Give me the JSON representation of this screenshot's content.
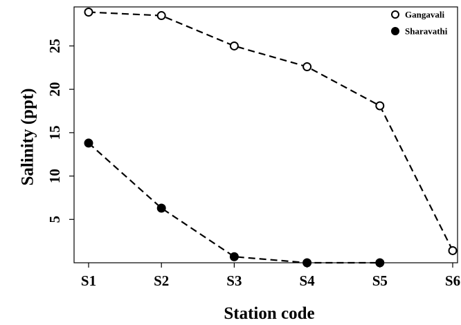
{
  "chart_data": {
    "type": "line",
    "title": "",
    "xlabel": "Station code",
    "ylabel": "Salinity (ppt)",
    "categories": [
      "S1",
      "S2",
      "S3",
      "S4",
      "S5",
      "S6"
    ],
    "yticks": [
      5,
      10,
      15,
      20,
      25
    ],
    "ylim": [
      0,
      29.5
    ],
    "grid": false,
    "legend_position": "top-right",
    "series": [
      {
        "name": "Gangavali",
        "marker": "open-circle",
        "line_style": "dashed",
        "color": "#000000",
        "values": [
          28.9,
          28.5,
          25.0,
          22.6,
          18.1,
          1.4
        ]
      },
      {
        "name": "Sharavathi",
        "marker": "filled-circle",
        "line_style": "dashed",
        "color": "#000000",
        "values": [
          13.8,
          6.3,
          0.7,
          0.0,
          0.0,
          null
        ]
      }
    ]
  }
}
